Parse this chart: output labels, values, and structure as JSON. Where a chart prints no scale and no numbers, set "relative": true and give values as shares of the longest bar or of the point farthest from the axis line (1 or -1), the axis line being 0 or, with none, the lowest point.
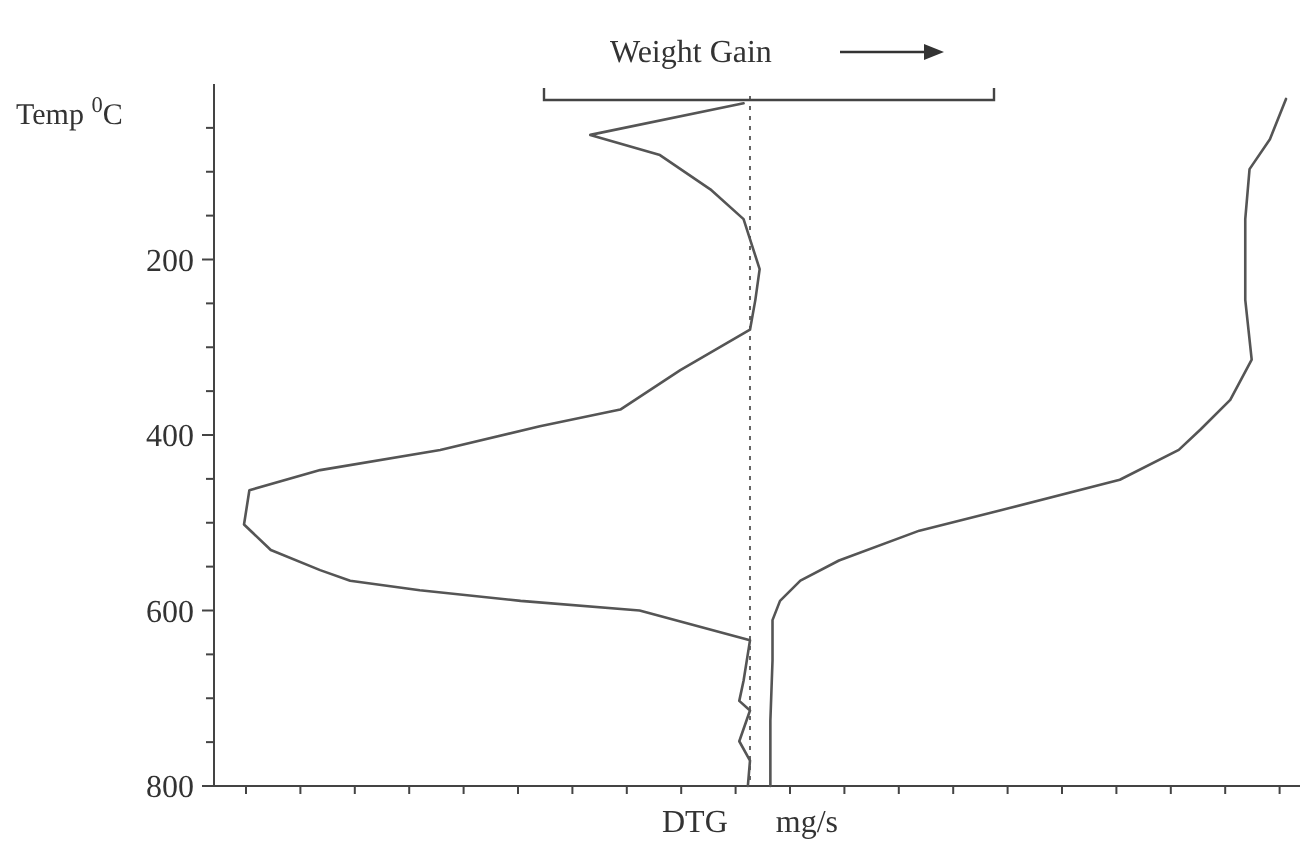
{
  "chart_data": {
    "type": "line",
    "orientation": "horizontal",
    "relative": true,
    "xlabel": "DTG mg/s",
    "ylabel": "Temp $^{0}$C",
    "annotations": [
      "Weight Gain"
    ],
    "ylim": [
      800,
      0
    ],
    "yticks": [
      {
        "value": 50,
        "label": null
      },
      {
        "value": 100,
        "label": null
      },
      {
        "value": 150,
        "label": null
      },
      200,
      {
        "value": 250,
        "label": null
      },
      {
        "value": 300,
        "label": null
      },
      {
        "value": 350,
        "label": null
      },
      400,
      {
        "value": 450,
        "label": null
      },
      {
        "value": 500,
        "label": null
      },
      {
        "value": 550,
        "label": null
      },
      600,
      {
        "value": 650,
        "label": null
      },
      {
        "value": 700,
        "label": null
      },
      {
        "value": 750,
        "label": null
      },
      800
    ],
    "tick_labels": "y",
    "grid": false,
    "marker": "none",
    "ref_lines": [
      {
        "axis": "x",
        "value": 0.5,
        "color": "#666666",
        "line_style": "dotted"
      }
    ],
    "series": [
      {
        "color": "#555555",
        "values": [
          0.494,
          0.351,
          0.416,
          0.463,
          0.494,
          0.509,
          0.505,
          0.5,
          0.435,
          0.379,
          0.304,
          0.211,
          0.099,
          0.033,
          0.028,
          0.053,
          0.099,
          0.127,
          0.192,
          0.286,
          0.397,
          0.5,
          0.494,
          0.49,
          0.5,
          0.49,
          0.5,
          0.498
        ],
        "x": [
          22,
          58,
          81,
          120,
          154,
          211,
          246,
          280,
          326,
          371,
          390,
          417,
          440,
          463,
          502,
          531,
          554,
          566,
          577,
          589,
          600,
          634,
          680,
          703,
          714,
          749,
          771,
          800
        ]
      },
      {
        "color": "#555555",
        "values": [
          1,
          0.985,
          0.966,
          0.962,
          0.962,
          0.968,
          0.948,
          0.92,
          0.9,
          0.845,
          0.733,
          0.658,
          0.583,
          0.547,
          0.528,
          0.521,
          0.521,
          0.519,
          0.519
        ],
        "x": [
          17,
          63,
          97,
          154,
          246,
          314,
          360,
          394,
          417,
          451,
          486,
          509,
          543,
          566,
          589,
          611,
          657,
          726,
          800
        ]
      }
    ]
  }
}
